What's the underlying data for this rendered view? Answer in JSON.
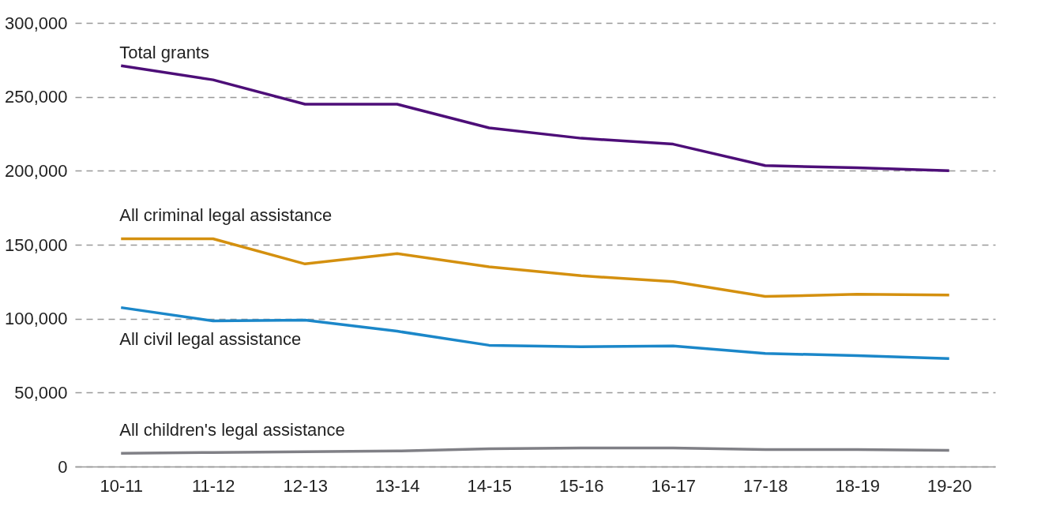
{
  "chart_data": {
    "type": "line",
    "categories": [
      "10-11",
      "11-12",
      "12-13",
      "13-14",
      "14-15",
      "15-16",
      "16-17",
      "17-18",
      "18-19",
      "19-20"
    ],
    "series": [
      {
        "name": "Total grants",
        "color": "#4d0e78",
        "values": [
          271000,
          261500,
          245000,
          245000,
          229000,
          222000,
          218000,
          203500,
          202000,
          200000
        ]
      },
      {
        "name": "All criminal legal assistance",
        "color": "#d4900f",
        "values": [
          154000,
          154000,
          137000,
          144000,
          135000,
          129000,
          125000,
          115000,
          116500,
          116000
        ]
      },
      {
        "name": "All civil legal assistance",
        "color": "#1b87c9",
        "values": [
          107500,
          98500,
          99000,
          91500,
          82000,
          81000,
          81500,
          76500,
          75000,
          73000
        ]
      },
      {
        "name": "All children's legal assistance",
        "color": "#808086",
        "values": [
          9000,
          9500,
          10000,
          10500,
          12000,
          12500,
          12500,
          11500,
          11500,
          11000
        ]
      }
    ],
    "ylim": [
      0,
      300000
    ],
    "yticks": [
      0,
      {
        "value": 50000,
        "label": "50,000"
      },
      {
        "value": 100000,
        "label": "100,000"
      },
      {
        "value": 150000,
        "label": "150,000"
      },
      {
        "value": 200000,
        "label": "200,000"
      },
      {
        "value": 250000,
        "label": "250,000"
      },
      {
        "value": 300000,
        "label": "300,000"
      }
    ],
    "grid": "y",
    "legend": false,
    "marker": "none",
    "line_style": "solid"
  }
}
